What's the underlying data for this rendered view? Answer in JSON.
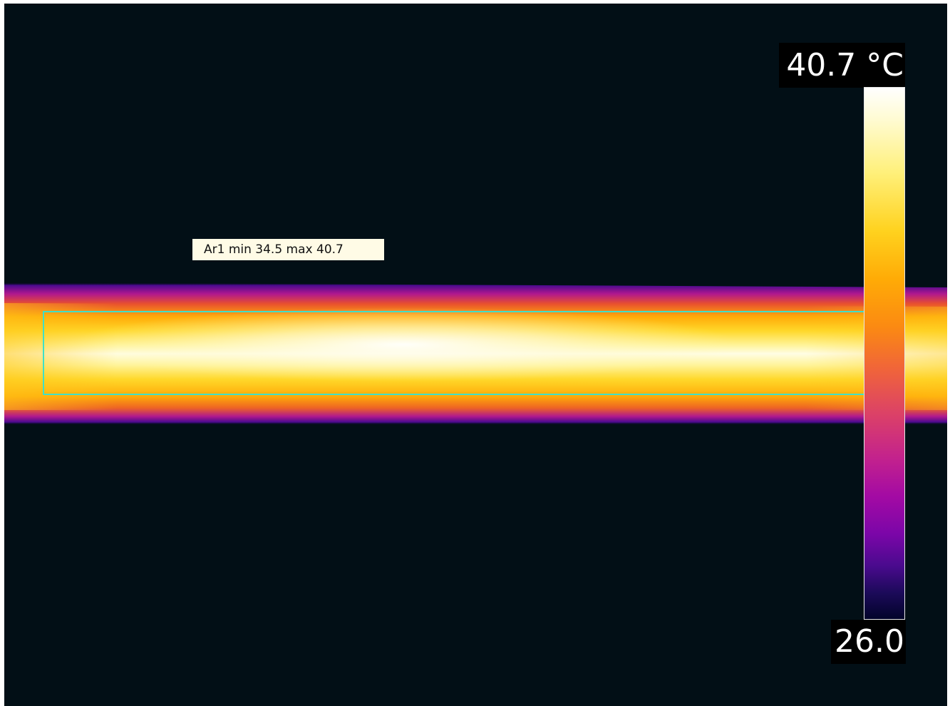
{
  "thermal_view": {
    "measurement": {
      "label": "Ar1 min 34.5 max 40.7",
      "frame_color": "#3ee0c8"
    },
    "temperature_scale": {
      "max_label": "40.7 °C",
      "min_label": "26.0",
      "palette": "iron"
    },
    "colors": {
      "background": "#020f16",
      "hot": "#ffffff",
      "warm": "#ffd21e",
      "edge": "#e85a1e",
      "cool": "#6a0a9a"
    }
  }
}
